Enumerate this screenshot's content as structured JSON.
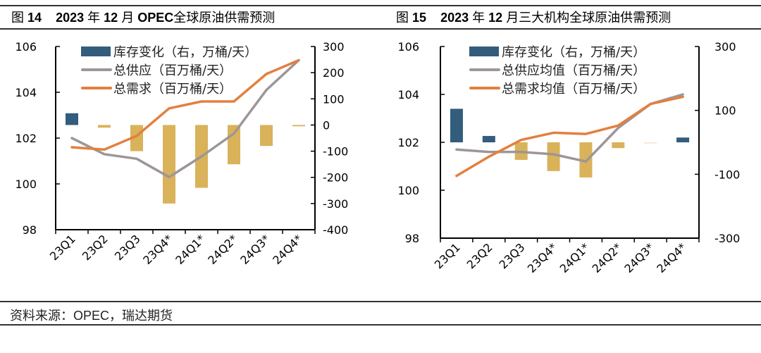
{
  "figures": [
    {
      "fig_label": "图",
      "fig_num": "14",
      "title_year": "2023",
      "title_mid1": "年",
      "title_month": "12",
      "title_mid2": "月",
      "title_bold_tail": "OPEC",
      "title_rest": "全球原油供需预测"
    },
    {
      "fig_label": "图",
      "fig_num": "15",
      "title_year": "2023",
      "title_mid1": "年",
      "title_month": "12",
      "title_mid2": "月三大机构全球原油供需预测",
      "title_bold_tail": "",
      "title_rest": ""
    }
  ],
  "source": "资料来源：OPEC，瑞达期货",
  "colors": {
    "inventory_positive": "#335C7D",
    "inventory_negative": "#D9B25A",
    "supply": "#9E9696",
    "demand": "#E2803F",
    "axis": "#000000"
  },
  "chart_data": [
    {
      "type": "bar+line",
      "title": "2023年12月OPEC全球原油供需预测",
      "categories": [
        "23Q1",
        "23Q2",
        "23Q3",
        "23Q4*",
        "24Q1*",
        "24Q2*",
        "24Q3*",
        "24Q4*"
      ],
      "series": [
        {
          "name": "库存变化（右，万桶/天）",
          "kind": "bar",
          "axis": "right",
          "values": [
            45,
            -10,
            -100,
            -300,
            -240,
            -150,
            -80,
            -5
          ]
        },
        {
          "name": "总供应（百万桶/天）",
          "kind": "line",
          "axis": "left",
          "values": [
            102.0,
            101.3,
            101.1,
            100.3,
            101.2,
            102.2,
            104.1,
            105.4
          ]
        },
        {
          "name": "总需求（百万桶/天）",
          "kind": "line",
          "axis": "left",
          "values": [
            101.6,
            101.5,
            102.1,
            103.3,
            103.6,
            103.6,
            104.8,
            105.4
          ]
        }
      ],
      "left_axis": {
        "min": 98,
        "max": 106,
        "ticks": [
          98,
          100,
          102,
          104,
          106
        ]
      },
      "right_axis": {
        "min": -400,
        "max": 300,
        "ticks": [
          -400,
          -300,
          -200,
          -100,
          0,
          100,
          200,
          300
        ]
      },
      "legend": "top-left",
      "grid": false
    },
    {
      "type": "bar+line",
      "title": "2023年12月三大机构全球原油供需预测",
      "categories": [
        "23Q1",
        "23Q2",
        "23Q3",
        "23Q4*",
        "24Q1*",
        "24Q2*",
        "24Q3*",
        "24Q4*"
      ],
      "series": [
        {
          "name": "库存变化（右，万桶/天）",
          "kind": "bar",
          "axis": "right",
          "values": [
            105,
            20,
            -55,
            -90,
            -110,
            -18,
            -3,
            15
          ]
        },
        {
          "name": "总供应均值（百万桶/天）",
          "kind": "line",
          "axis": "left",
          "values": [
            101.7,
            101.6,
            101.6,
            101.5,
            101.2,
            102.6,
            103.6,
            104.0
          ]
        },
        {
          "name": "总需求均值（百万桶/天）",
          "kind": "line",
          "axis": "left",
          "values": [
            100.6,
            101.4,
            102.1,
            102.4,
            102.35,
            102.7,
            103.6,
            103.9
          ]
        }
      ],
      "left_axis": {
        "min": 98,
        "max": 106,
        "ticks": [
          98,
          100,
          102,
          104,
          106
        ]
      },
      "right_axis": {
        "min": -300,
        "max": 300,
        "ticks": [
          -300,
          -100,
          100,
          300
        ]
      },
      "legend": "top-left",
      "grid": false
    }
  ]
}
